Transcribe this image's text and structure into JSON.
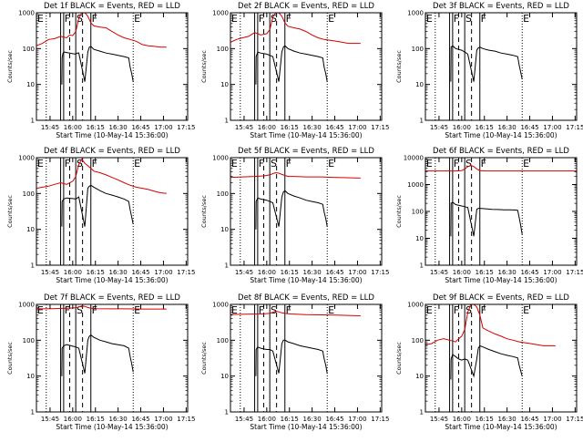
{
  "figure": {
    "ylabel": "Counts/sec",
    "xlabel": "Start Time (10-May-14 15:36:00)",
    "x_tick_labels": [
      "15:45",
      "16:00",
      "16:15",
      "16:30",
      "16:45",
      "17:00",
      "17:15"
    ],
    "y_tick_labels": [
      "1",
      "10",
      "100",
      "1000"
    ],
    "region_labels": [
      "E",
      "F",
      "S",
      "F",
      "E"
    ],
    "colors": {
      "events": "#000000",
      "lld": "#d40000",
      "frame": "#000000"
    }
  },
  "chart_data": [
    {
      "type": "line",
      "title": "Det 1f BLACK = Events, RED = LLD",
      "x_unit": "minutes since 15:36:00",
      "xlim": [
        0,
        100
      ],
      "ylim": [
        1,
        1000
      ],
      "yscale": "log",
      "series": [
        {
          "name": "Events",
          "color": "#000000",
          "x": [
            16.8,
            17,
            17.6,
            18.2,
            20,
            24,
            26,
            27,
            28,
            32,
            34,
            35,
            36,
            38,
            42,
            46,
            50,
            54,
            58,
            61,
            62,
            63,
            64
          ],
          "y": [
            10,
            55,
            75,
            80,
            78,
            72,
            70,
            75,
            76,
            12,
            80,
            110,
            115,
            95,
            85,
            75,
            70,
            65,
            60,
            55,
            30,
            20,
            12
          ]
        },
        {
          "name": "LLD",
          "color": "#d40000",
          "x": [
            0,
            4,
            8,
            12,
            16,
            20,
            22,
            24,
            26,
            28,
            30,
            31,
            32,
            33,
            34,
            36,
            38,
            42,
            46,
            50,
            54,
            58,
            62,
            66,
            70,
            74,
            78,
            82,
            86
          ],
          "y": [
            120,
            140,
            180,
            190,
            220,
            200,
            240,
            230,
            300,
            700,
            1000,
            1000,
            1000,
            900,
            800,
            520,
            430,
            400,
            380,
            300,
            240,
            200,
            180,
            160,
            130,
            120,
            115,
            110,
            110
          ]
        }
      ]
    },
    {
      "type": "line",
      "title": "Det 2f BLACK = Events, RED = LLD",
      "x_unit": "minutes since 15:36:00",
      "xlim": [
        0,
        100
      ],
      "ylim": [
        1,
        1000
      ],
      "yscale": "log",
      "series": [
        {
          "name": "Events",
          "color": "#000000",
          "x": [
            16.8,
            17,
            18,
            20,
            24,
            26,
            28,
            32,
            34,
            35,
            36,
            38,
            42,
            46,
            50,
            54,
            58,
            61,
            62,
            63,
            64
          ],
          "y": [
            10,
            60,
            80,
            75,
            70,
            65,
            60,
            12,
            80,
            110,
            120,
            100,
            85,
            75,
            70,
            65,
            60,
            55,
            30,
            20,
            12
          ]
        },
        {
          "name": "LLD",
          "color": "#d40000",
          "x": [
            0,
            4,
            8,
            12,
            16,
            20,
            24,
            26,
            28,
            30,
            32,
            34,
            36,
            38,
            42,
            46,
            50,
            54,
            58,
            62,
            66,
            70,
            74,
            78,
            82,
            86
          ],
          "y": [
            150,
            180,
            200,
            220,
            280,
            240,
            260,
            340,
            750,
            1000,
            1000,
            800,
            520,
            420,
            380,
            350,
            300,
            240,
            200,
            180,
            170,
            160,
            150,
            140,
            140,
            140
          ]
        }
      ]
    },
    {
      "type": "line",
      "title": "Det 3f BLACK = Events, RED = LLD",
      "x_unit": "minutes since 15:36:00",
      "xlim": [
        0,
        100
      ],
      "ylim": [
        1,
        1000
      ],
      "yscale": "log",
      "series": [
        {
          "name": "Events",
          "color": "#000000",
          "x": [
            16.8,
            17,
            18,
            20,
            24,
            26,
            28,
            32,
            34,
            35,
            36,
            38,
            42,
            46,
            50,
            54,
            58,
            61,
            62,
            63,
            64
          ],
          "y": [
            12,
            110,
            120,
            100,
            90,
            80,
            70,
            12,
            90,
            105,
            110,
            100,
            90,
            85,
            75,
            70,
            65,
            60,
            35,
            22,
            14
          ]
        },
        {
          "name": "LLD",
          "color": "#d40000",
          "x": [
            0,
            20,
            40,
            60,
            80,
            100
          ],
          "y": [
            1000,
            1000,
            1000,
            1000,
            1000,
            1000
          ]
        }
      ]
    },
    {
      "type": "line",
      "title": "Det 4f BLACK = Events, RED = LLD",
      "x_unit": "minutes since 15:36:00",
      "xlim": [
        0,
        100
      ],
      "ylim": [
        1,
        1000
      ],
      "yscale": "log",
      "series": [
        {
          "name": "Events",
          "color": "#000000",
          "x": [
            16.8,
            17,
            18,
            20,
            24,
            26,
            28,
            32,
            34,
            35,
            36,
            38,
            42,
            46,
            50,
            54,
            58,
            61,
            62,
            63,
            64
          ],
          "y": [
            12,
            60,
            70,
            75,
            72,
            70,
            80,
            12,
            140,
            160,
            170,
            150,
            120,
            100,
            90,
            80,
            70,
            60,
            35,
            22,
            14
          ]
        },
        {
          "name": "LLD",
          "color": "#d40000",
          "x": [
            0,
            4,
            8,
            12,
            16,
            20,
            24,
            26,
            28,
            30,
            32,
            34,
            36,
            38,
            42,
            46,
            50,
            54,
            58,
            62,
            66,
            70,
            74,
            78,
            82,
            86
          ],
          "y": [
            140,
            150,
            160,
            180,
            200,
            180,
            220,
            300,
            650,
            900,
            700,
            600,
            500,
            420,
            380,
            330,
            280,
            240,
            200,
            170,
            150,
            140,
            130,
            115,
            105,
            100
          ]
        }
      ]
    },
    {
      "type": "line",
      "title": "Det 5f BLACK = Events, RED = LLD",
      "x_unit": "minutes since 15:36:00",
      "xlim": [
        0,
        100
      ],
      "ylim": [
        1,
        1000
      ],
      "yscale": "log",
      "series": [
        {
          "name": "Events",
          "color": "#000000",
          "x": [
            16.8,
            17,
            18,
            20,
            24,
            26,
            28,
            32,
            34,
            35,
            36,
            38,
            42,
            46,
            50,
            54,
            58,
            61,
            62,
            63,
            64
          ],
          "y": [
            10,
            60,
            75,
            70,
            65,
            60,
            55,
            12,
            80,
            110,
            120,
            100,
            85,
            75,
            65,
            60,
            55,
            50,
            30,
            20,
            12
          ]
        },
        {
          "name": "LLD",
          "color": "#d40000",
          "x": [
            0,
            8,
            16,
            22,
            26,
            28,
            30,
            32,
            34,
            36,
            38,
            42,
            50,
            60,
            70,
            80,
            86
          ],
          "y": [
            280,
            290,
            300,
            310,
            330,
            360,
            380,
            370,
            340,
            320,
            300,
            300,
            290,
            290,
            280,
            275,
            270
          ]
        }
      ]
    },
    {
      "type": "line",
      "title": "Det 6f BLACK = Events, RED = LLD",
      "x_unit": "minutes since 15:36:00",
      "xlim": [
        0,
        100
      ],
      "ylim": [
        1,
        10000
      ],
      "yscale": "log",
      "series": [
        {
          "name": "Events",
          "color": "#000000",
          "x": [
            16.8,
            17,
            18,
            20,
            24,
            26,
            28,
            32,
            34,
            35,
            36,
            40,
            44,
            48,
            52,
            56,
            60,
            61,
            62,
            63,
            64
          ],
          "y": [
            12,
            200,
            220,
            180,
            160,
            150,
            140,
            12,
            120,
            130,
            130,
            125,
            120,
            118,
            115,
            115,
            112,
            110,
            60,
            30,
            14
          ]
        },
        {
          "name": "LLD",
          "color": "#d40000",
          "x": [
            0,
            10,
            20,
            24,
            26,
            28,
            30,
            32,
            34,
            36,
            40,
            60,
            80,
            100
          ],
          "y": [
            3200,
            3200,
            3200,
            3300,
            3800,
            4600,
            5200,
            4700,
            3800,
            3300,
            3200,
            3200,
            3200,
            3200
          ]
        }
      ]
    },
    {
      "type": "line",
      "title": "Det 7f BLACK = Events, RED = LLD",
      "x_unit": "minutes since 15:36:00",
      "xlim": [
        0,
        100
      ],
      "ylim": [
        1,
        1000
      ],
      "yscale": "log",
      "series": [
        {
          "name": "Events",
          "color": "#000000",
          "x": [
            16.8,
            17,
            18,
            20,
            24,
            26,
            28,
            32,
            34,
            35,
            36,
            38,
            42,
            46,
            50,
            54,
            58,
            61,
            62,
            63,
            64
          ],
          "y": [
            10,
            60,
            70,
            75,
            68,
            65,
            60,
            12,
            100,
            130,
            140,
            120,
            100,
            90,
            80,
            75,
            70,
            60,
            35,
            22,
            13
          ]
        },
        {
          "name": "LLD",
          "color": "#d40000",
          "x": [
            0,
            10,
            20,
            26,
            28,
            30,
            32,
            34,
            36,
            40,
            50,
            60,
            70,
            80,
            86
          ],
          "y": [
            750,
            760,
            780,
            800,
            850,
            900,
            880,
            820,
            780,
            760,
            750,
            750,
            740,
            740,
            740
          ]
        }
      ]
    },
    {
      "type": "line",
      "title": "Det 8f BLACK = Events, RED = LLD",
      "x_unit": "minutes since 15:36:00",
      "xlim": [
        0,
        100
      ],
      "ylim": [
        1,
        1000
      ],
      "yscale": "log",
      "series": [
        {
          "name": "Events",
          "color": "#000000",
          "x": [
            16.8,
            17,
            18,
            20,
            24,
            26,
            28,
            32,
            34,
            35,
            36,
            38,
            42,
            46,
            50,
            54,
            58,
            61,
            62,
            63,
            64
          ],
          "y": [
            10,
            55,
            65,
            60,
            55,
            55,
            50,
            12,
            80,
            100,
            100,
            90,
            80,
            70,
            65,
            60,
            55,
            50,
            30,
            20,
            12
          ]
        },
        {
          "name": "LLD",
          "color": "#d40000",
          "x": [
            0,
            10,
            20,
            26,
            28,
            30,
            32,
            34,
            36,
            40,
            50,
            60,
            70,
            80,
            86
          ],
          "y": [
            520,
            530,
            540,
            560,
            600,
            650,
            620,
            580,
            560,
            540,
            520,
            510,
            500,
            490,
            480
          ]
        }
      ]
    },
    {
      "type": "line",
      "title": "Det 9f BLACK = Events, RED = LLD",
      "x_unit": "minutes since 15:36:00",
      "xlim": [
        0,
        100
      ],
      "ylim": [
        1,
        1000
      ],
      "yscale": "log",
      "series": [
        {
          "name": "Events",
          "color": "#000000",
          "x": [
            16.8,
            17,
            18,
            20,
            22,
            24,
            26,
            28,
            32,
            34,
            35,
            36,
            38,
            42,
            46,
            50,
            54,
            58,
            61,
            62,
            63,
            64
          ],
          "y": [
            8,
            30,
            40,
            35,
            30,
            28,
            30,
            28,
            10,
            30,
            60,
            70,
            65,
            55,
            48,
            42,
            38,
            35,
            32,
            20,
            14,
            10
          ]
        },
        {
          "name": "LLD",
          "color": "#d40000",
          "x": [
            0,
            4,
            8,
            12,
            16,
            20,
            22,
            24,
            26,
            28,
            30,
            31,
            32,
            34,
            36,
            38,
            42,
            46,
            50,
            54,
            58,
            62,
            66,
            70,
            74,
            78,
            82,
            86
          ],
          "y": [
            75,
            80,
            100,
            110,
            100,
            90,
            110,
            130,
            200,
            600,
            1000,
            1000,
            1000,
            850,
            500,
            220,
            180,
            150,
            130,
            110,
            100,
            90,
            85,
            80,
            75,
            70,
            70,
            70
          ]
        }
      ]
    }
  ]
}
